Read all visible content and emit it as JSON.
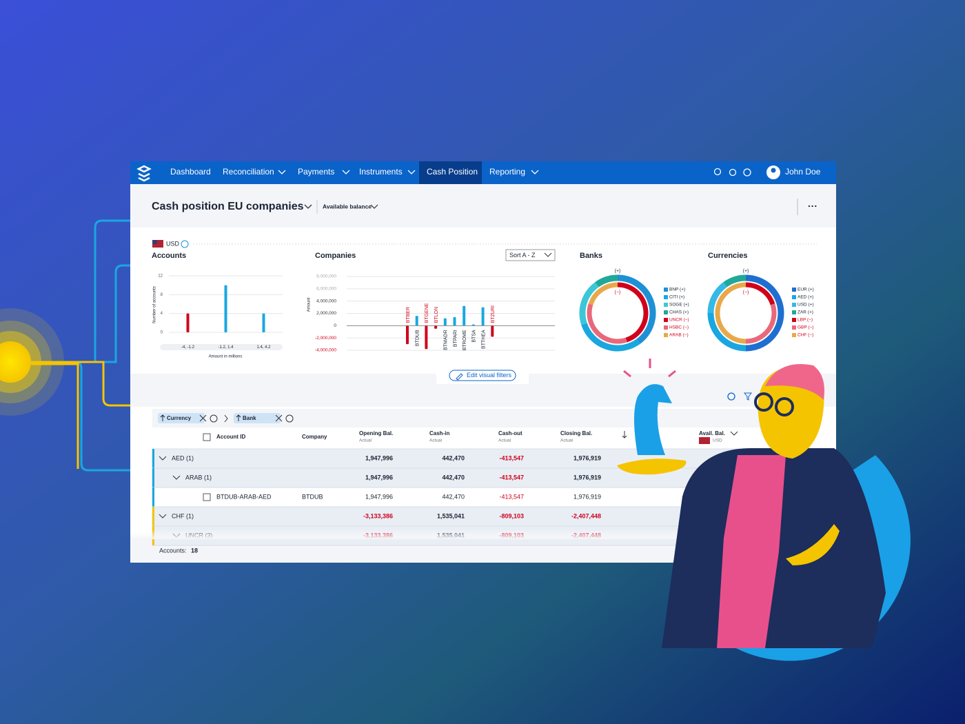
{
  "nav": {
    "items": [
      "Dashboard",
      "Reconciliation",
      "Payments",
      "Instruments",
      "Cash Position",
      "Reporting"
    ],
    "active": 4,
    "user": "John Doe"
  },
  "header": {
    "title": "Cash position EU companies",
    "view": "Available balance"
  },
  "currency": "USD",
  "accounts_chart": {
    "type": "bar",
    "title": "Accounts",
    "y_label": "Number of accounts",
    "x_label": "Amount in millions",
    "categories": [
      "-4, -1.2",
      "-1.2, 1.4",
      "1.4, 4.2"
    ],
    "values": [
      4,
      10,
      4
    ],
    "colors": [
      "#d0021b",
      "#1aa7e0",
      "#1aa7e0"
    ],
    "ylim": [
      0,
      12
    ],
    "yticks": [
      0,
      4,
      8,
      12
    ],
    "grid": true
  },
  "companies_chart": {
    "type": "bar",
    "title": "Companies",
    "sort": "Sort A - Z",
    "y_label": "Amount",
    "categories": [
      "BTBER",
      "BTDUB",
      "BTGENE",
      "BTLON",
      "BTMADR",
      "BTPARI",
      "BTROME",
      "BTSA",
      "BTTHEA",
      "BTZURI"
    ],
    "values": [
      -3000000,
      1600000,
      -3800000,
      -500000,
      1200000,
      1400000,
      3200000,
      200000,
      3000000,
      -1800000
    ],
    "colors": [
      "#d0021b",
      "#1aa7e0",
      "#d0021b",
      "#d0021b",
      "#1aa7e0",
      "#1aa7e0",
      "#1aa7e0",
      "#1aa7e0",
      "#1aa7e0",
      "#d0021b"
    ],
    "ylim": [
      -4000000,
      8000000
    ],
    "yticks": [
      {
        "value": -4000000,
        "label": "-4,000,000"
      },
      {
        "value": -2000000,
        "label": "-2,000,000"
      },
      0,
      {
        "value": 2000000,
        "label": "2,000,000"
      },
      {
        "value": 4000000,
        "label": "4,000,000"
      },
      {
        "value": 6000000,
        "label": "6,000,000"
      },
      {
        "value": 8000000,
        "label": "8,000,000"
      }
    ],
    "grid": true
  },
  "banks_chart": {
    "type": "donut",
    "title": "Banks",
    "ring_labels": [
      "(+)",
      "(−)"
    ],
    "categories": [
      "BNP (+)",
      "CITI (+)",
      "SOGE (+)",
      "CHAS (+)",
      "UNCR (−)",
      "HSBC (−)",
      "ARAB (−)"
    ],
    "values": [
      40,
      30,
      20,
      10,
      45,
      35,
      20
    ],
    "rings": [
      0,
      0,
      0,
      0,
      1,
      1,
      1
    ],
    "colors": [
      "#1e90d6",
      "#1aa7e0",
      "#3cc7d8",
      "#21a89a",
      "#d0021b",
      "#e8697a",
      "#e8a94a"
    ]
  },
  "currencies_chart": {
    "type": "donut",
    "title": "Currencies",
    "ring_labels": [
      "(+)",
      "(−)"
    ],
    "categories": [
      "EUR (+)",
      "AED (+)",
      "USD (+)",
      "ZAR (+)",
      "LBP (−)",
      "GBP (−)",
      "CHF (−)"
    ],
    "values": [
      50,
      25,
      15,
      10,
      20,
      30,
      50
    ],
    "rings": [
      0,
      0,
      0,
      0,
      1,
      1,
      1
    ],
    "colors": [
      "#1e6fd0",
      "#1aa7e0",
      "#35b9e6",
      "#21a89a",
      "#d0021b",
      "#e8697a",
      "#e8a94a"
    ]
  },
  "filters_button": "Edit visual filters",
  "table": {
    "groups": [
      "Currency",
      "Bank"
    ],
    "columns": [
      {
        "name": "Account ID"
      },
      {
        "name": "Company"
      },
      {
        "name": "Opening Bal.",
        "sub": "Actual"
      },
      {
        "name": "Cash-in",
        "sub": "Actual"
      },
      {
        "name": "Cash-out",
        "sub": "Actual"
      },
      {
        "name": "Closing Bal.",
        "sub": "Actual"
      },
      {
        "name": "Avail. Bal.",
        "sub": "USD"
      }
    ],
    "rows": [
      {
        "label": "AED (1)",
        "level": 0,
        "cells": [
          "1,947,996",
          "442,470",
          "-413,547",
          "1,976,919"
        ]
      },
      {
        "label": "ARAB (1)",
        "level": 1,
        "cells": [
          "1,947,996",
          "442,470",
          "-413,547",
          "1,976,919"
        ]
      },
      {
        "label": "BTDUB-ARAB-AED",
        "level": 2,
        "company": "BTDUB",
        "cells": [
          "1,947,996",
          "442,470",
          "-413,547",
          "1,976,919"
        ]
      },
      {
        "label": "CHF (1)",
        "level": 0,
        "cells": [
          "-3,133,386",
          "1,535,041",
          "-809,103",
          "-2,407,448"
        ]
      },
      {
        "label": "UNCR (3)",
        "level": 1,
        "cells": [
          "-3,133,386",
          "1,535,041",
          "-809,103",
          "-2,407,448"
        ]
      }
    ]
  },
  "footer": {
    "label": "Accounts:",
    "value": "18"
  }
}
